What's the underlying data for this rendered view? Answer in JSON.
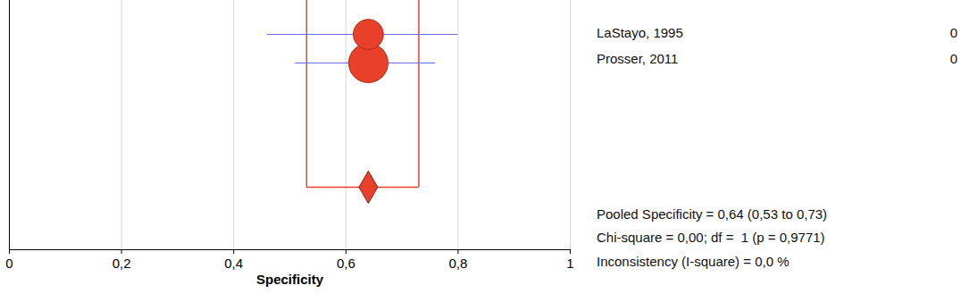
{
  "chart_data": {
    "type": "forest",
    "xlabel": "Specificity",
    "xlim": [
      0,
      1
    ],
    "xticks": [
      0,
      {
        "value": 0.2,
        "label": "0,2"
      },
      {
        "value": 0.4,
        "label": "0,4"
      },
      {
        "value": 0.6,
        "label": "0,6"
      },
      {
        "value": 0.8,
        "label": "0,8"
      },
      1
    ],
    "grid": true,
    "color": "#e8402a",
    "studies": [
      {
        "name": "LaStayo, 1995",
        "value": 0.64,
        "ci_lower": 0.46,
        "ci_upper": 0.8,
        "weight": 37,
        "label": "0"
      },
      {
        "name": "Prosser, 2011",
        "value": 0.64,
        "ci_lower": 0.51,
        "ci_upper": 0.76,
        "weight": 63,
        "label": "0"
      }
    ],
    "pooled": {
      "value": 0.64,
      "ci_lower": 0.53,
      "ci_upper": 0.73
    },
    "annotations": [
      "Pooled Specificity = 0,64 (0,53 to 0,73)",
      "Chi-square = 0,00; df =  1 (p = 0,9771)",
      "Inconsistency (I-square) = 0,0 %"
    ]
  }
}
